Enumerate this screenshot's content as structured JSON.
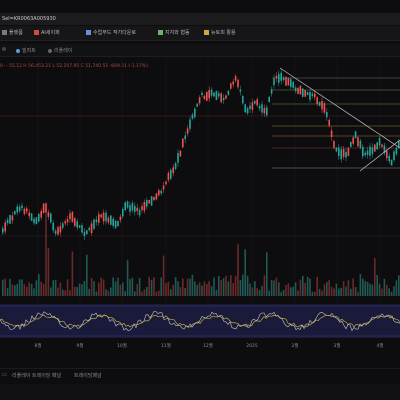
{
  "browser": {
    "url": "Sel=KR0063A005930"
  },
  "bookmarks": [
    {
      "label": "플랫폼",
      "color": "#7a7a80"
    },
    {
      "label": "AI세이퍼",
      "color": "#d14b3f"
    },
    {
      "label": "수업무드 작가다운로",
      "color": "#6b8cd6"
    },
    {
      "label": "지지와 협동",
      "color": "#6fb36b"
    },
    {
      "label": "뉴토피 활용",
      "color": "#d0a640"
    }
  ],
  "toolbar": {
    "items": [
      {
        "label": "빌려트",
        "color": "#5a9bd8"
      },
      {
        "label": "리플레이",
        "color": "#9a9aa0"
      }
    ]
  },
  "ohlc": {
    "text": "0 -- 55,12   H 56,453.21   L 52,107.95   C 51,740.51   -609.21 (-1.17%)"
  },
  "chart_data": {
    "type": "candlestick",
    "x_ticks": [
      "8월",
      "9월",
      "10월",
      "11월",
      "12월",
      "2025",
      "2월",
      "3월",
      "4월"
    ],
    "indicator": "oscillator",
    "volume": true,
    "horizontal_levels": 7,
    "trend_lines": [
      "descending",
      "ascending"
    ]
  },
  "bottom_tabs": [
    "리플레이 트레이딩 패널",
    "트레이딩패널"
  ],
  "colors": {
    "up": "#26a69a",
    "down": "#ef5350",
    "grid": "#1a1a1e",
    "line_main": "#c8c8cc",
    "line_signal": "#d8c040",
    "band": "#2c2c5c"
  }
}
